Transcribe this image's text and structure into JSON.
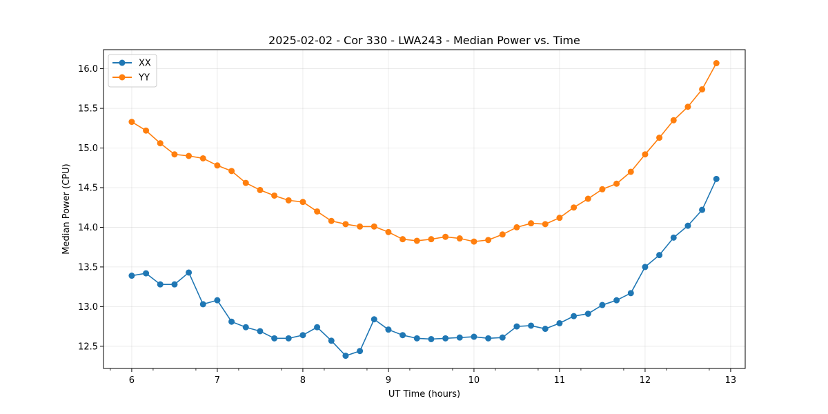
{
  "chart_data": {
    "type": "line",
    "title": "2025-02-02 - Cor 330 - LWA243 - Median Power vs. Time",
    "xlabel": "UT Time (hours)",
    "ylabel": "Median Power (CPU)",
    "xlim": [
      5.67,
      13.17
    ],
    "ylim": [
      12.22,
      16.24
    ],
    "x_ticks": [
      6,
      7,
      8,
      9,
      10,
      11,
      12,
      13
    ],
    "y_ticks": [
      12.5,
      13.0,
      13.5,
      14.0,
      14.5,
      15.0,
      15.5,
      16.0
    ],
    "x_tick_labels": [
      "6",
      "7",
      "8",
      "9",
      "10",
      "11",
      "12",
      "13"
    ],
    "y_tick_labels": [
      "12.5",
      "13.0",
      "13.5",
      "14.0",
      "14.5",
      "15.0",
      "15.5",
      "16.0"
    ],
    "grid": true,
    "legend_position": "upper-left",
    "x": [
      6.0,
      6.1667,
      6.3333,
      6.5,
      6.6667,
      6.8333,
      7.0,
      7.1667,
      7.3333,
      7.5,
      7.6667,
      7.8333,
      8.0,
      8.1667,
      8.3333,
      8.5,
      8.6667,
      8.8333,
      9.0,
      9.1667,
      9.3333,
      9.5,
      9.6667,
      9.8333,
      10.0,
      10.1667,
      10.3333,
      10.5,
      10.6667,
      10.8333,
      11.0,
      11.1667,
      11.3333,
      11.5,
      11.6667,
      11.8333,
      12.0,
      12.1667,
      12.3333,
      12.5,
      12.6667,
      12.8333
    ],
    "series": [
      {
        "name": "XX",
        "color": "#1f77b4",
        "values": [
          13.39,
          13.42,
          13.28,
          13.28,
          13.43,
          13.03,
          13.08,
          12.81,
          12.74,
          12.69,
          12.6,
          12.6,
          12.64,
          12.74,
          12.57,
          12.38,
          12.44,
          12.84,
          12.71,
          12.64,
          12.6,
          12.59,
          12.6,
          12.61,
          12.62,
          12.6,
          12.61,
          12.75,
          12.76,
          12.72,
          12.79,
          12.88,
          12.91,
          13.02,
          13.08,
          13.17,
          13.5,
          13.65,
          13.87,
          14.02,
          14.22,
          14.61
        ]
      },
      {
        "name": "YY",
        "color": "#ff7f0e",
        "values": [
          15.33,
          15.22,
          15.06,
          14.92,
          14.9,
          14.87,
          14.78,
          14.71,
          14.56,
          14.47,
          14.4,
          14.34,
          14.32,
          14.2,
          14.08,
          14.04,
          14.01,
          14.01,
          13.94,
          13.85,
          13.83,
          13.85,
          13.88,
          13.86,
          13.82,
          13.84,
          13.91,
          14.0,
          14.05,
          14.04,
          14.12,
          14.25,
          14.36,
          14.48,
          14.55,
          14.7,
          14.92,
          15.13,
          15.35,
          15.52,
          15.74,
          16.07
        ]
      }
    ]
  }
}
